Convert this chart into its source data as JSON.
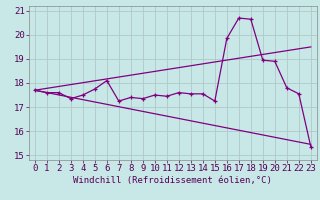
{
  "title": "",
  "xlabel": "Windchill (Refroidissement éolien,°C)",
  "ylabel": "",
  "background_color": "#c8e8e8",
  "grid_color": "#b0c8c8",
  "line_color": "#800080",
  "xlim": [
    -0.5,
    23.5
  ],
  "ylim": [
    14.8,
    21.2
  ],
  "xticks": [
    0,
    1,
    2,
    3,
    4,
    5,
    6,
    7,
    8,
    9,
    10,
    11,
    12,
    13,
    14,
    15,
    16,
    17,
    18,
    19,
    20,
    21,
    22,
    23
  ],
  "yticks": [
    15,
    16,
    17,
    18,
    19,
    20,
    21
  ],
  "series": {
    "main": {
      "x": [
        0,
        1,
        2,
        3,
        4,
        5,
        6,
        7,
        8,
        9,
        10,
        11,
        12,
        13,
        14,
        15,
        16,
        17,
        18,
        19,
        20,
        21,
        22,
        23
      ],
      "y": [
        17.7,
        17.6,
        17.6,
        17.35,
        17.5,
        17.75,
        18.1,
        17.25,
        17.4,
        17.35,
        17.5,
        17.45,
        17.6,
        17.55,
        17.55,
        17.25,
        19.85,
        20.7,
        20.65,
        18.95,
        18.9,
        17.8,
        17.55,
        15.35
      ]
    },
    "upper_trend": {
      "x": [
        0,
        23
      ],
      "y": [
        17.7,
        19.5
      ]
    },
    "lower_trend": {
      "x": [
        0,
        23
      ],
      "y": [
        17.7,
        15.45
      ]
    }
  },
  "tick_fontsize": 6.5,
  "xlabel_fontsize": 6.5
}
